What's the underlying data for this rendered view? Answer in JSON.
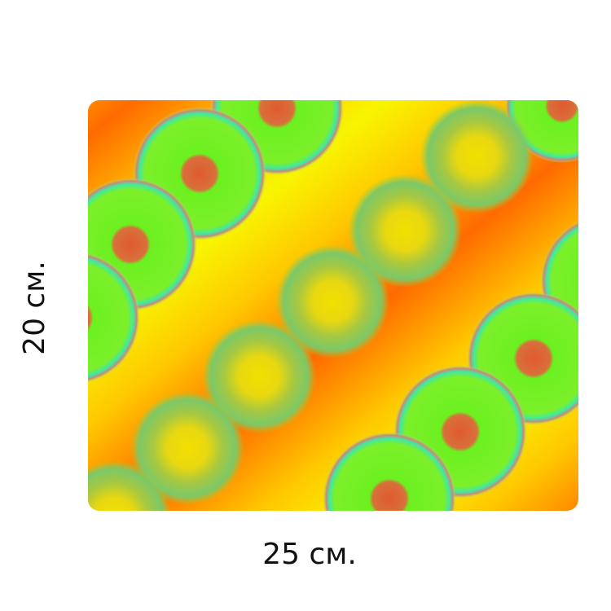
{
  "labels": {
    "height": "20 см.",
    "width": "25 см."
  }
}
